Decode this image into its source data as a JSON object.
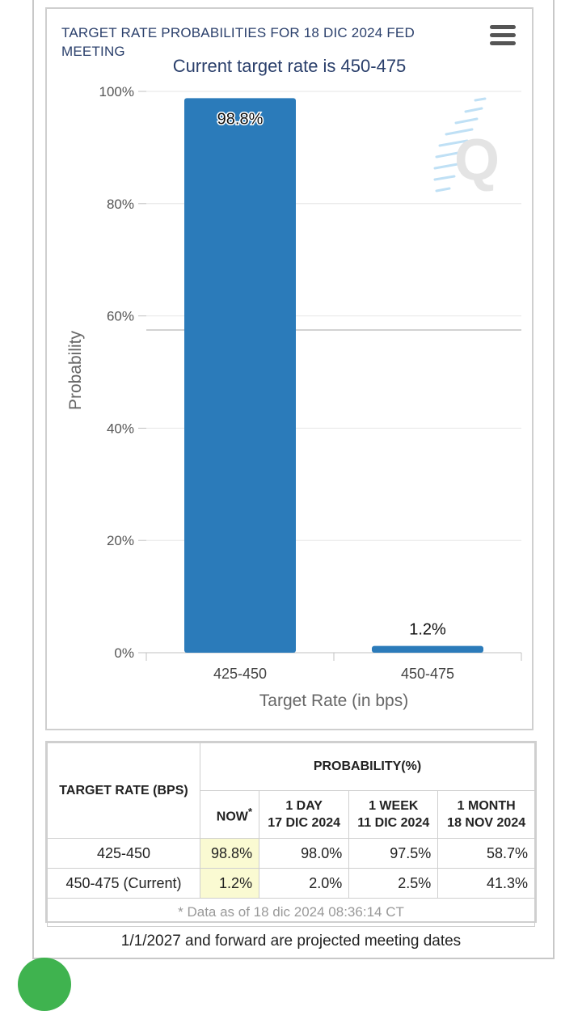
{
  "chart_data": {
    "type": "bar",
    "title": "TARGET RATE PROBABILITIES FOR 18 DIC 2024 FED MEETING",
    "subtitle": "Current target rate is 450-475",
    "xlabel": "Target Rate (in bps)",
    "ylabel": "Probability",
    "categories": [
      "425-450",
      "450-475"
    ],
    "values": [
      98.8,
      1.2
    ],
    "data_labels": [
      "98.8%",
      "1.2%"
    ],
    "ylim": [
      0,
      100
    ],
    "yticks": [
      0,
      20,
      40,
      60,
      80,
      100
    ],
    "ytick_labels": [
      "0%",
      "20%",
      "40%",
      "60%",
      "80%",
      "100%"
    ],
    "grid": true,
    "legend": "none",
    "bar_color": "#2b7bba",
    "reference_line_value": 57.5
  },
  "menu": {
    "icon": "hamburger-menu-icon"
  },
  "watermark": {
    "icon": "q-logo-icon",
    "letter": "Q"
  },
  "table": {
    "target_header": "TARGET RATE (BPS)",
    "prob_header": "PROBABILITY(%)",
    "now_label": "NOW",
    "now_marker": "*",
    "col_day_line1": "1 DAY",
    "col_day_line2": "17 DIC 2024",
    "col_week_line1": "1 WEEK",
    "col_week_line2": "11 DIC 2024",
    "col_month_line1": "1 MONTH",
    "col_month_line2": "18 NOV 2024",
    "rows": [
      {
        "rate": "425-450",
        "now": "98.8%",
        "day": "98.0%",
        "week": "97.5%",
        "month": "58.7%"
      },
      {
        "rate": "450-475 (Current)",
        "now": "1.2%",
        "day": "2.0%",
        "week": "2.5%",
        "month": "41.3%"
      }
    ],
    "footnote": "* Data as of 18 dic 2024 08:36:14 CT"
  },
  "bottom_note": "1/1/2027 and forward are projected meeting dates",
  "colors": {
    "accent": "#2a3f6b",
    "now_highlight": "#fafad2",
    "fab": "#3fb34f"
  }
}
